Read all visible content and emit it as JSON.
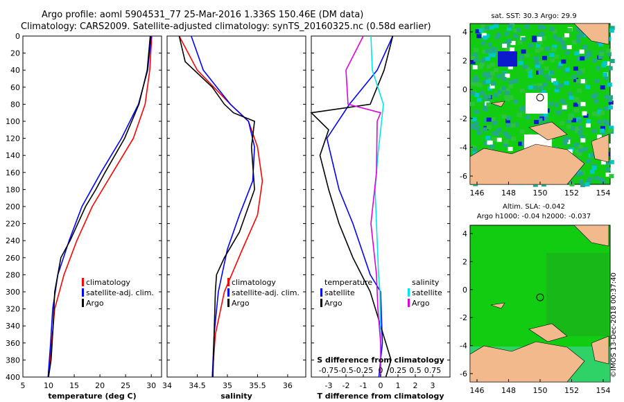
{
  "title_line1": "Argo profile: aoml 5904531_77 25-Mar-2016 1.336S 150.46E (DM data)",
  "title_line2": "Climatology: CARS2009. Satellite-adjusted climatology: synTS_20160325.nc (0.58d earlier)",
  "colors": {
    "climatology": "#ff0000",
    "satellite": "#0000ff",
    "argo": "#000000",
    "sat_salinity": "#00e5f0",
    "argo_salinity": "#e000e0",
    "ocean": "#11cc11",
    "land": "#f2b98c"
  },
  "chart_data": [
    {
      "type": "line",
      "name": "temperature",
      "xlabel": "temperature (deg C)",
      "xlim": [
        5,
        32
      ],
      "ylim": [
        400,
        0
      ],
      "xticks": [
        5,
        10,
        15,
        20,
        25,
        30
      ],
      "yticks": [
        0,
        20,
        40,
        60,
        80,
        100,
        120,
        140,
        160,
        180,
        200,
        220,
        240,
        260,
        280,
        300,
        320,
        340,
        360,
        380,
        400
      ],
      "series": [
        {
          "name": "climatology",
          "depth": [
            0,
            40,
            80,
            120,
            160,
            200,
            240,
            280,
            320,
            360,
            400
          ],
          "values": [
            30.1,
            29.7,
            28.8,
            26.5,
            22.5,
            18.5,
            15.5,
            13.0,
            11.2,
            10.6,
            10.0
          ]
        },
        {
          "name": "satellite-adj. clim.",
          "depth": [
            0,
            40,
            80,
            120,
            160,
            200,
            240,
            280,
            320,
            360,
            400
          ],
          "values": [
            30.0,
            29.3,
            27.5,
            24.2,
            20.2,
            16.5,
            14.0,
            11.8,
            10.8,
            10.4,
            9.9
          ]
        },
        {
          "name": "Argo",
          "depth": [
            0,
            40,
            80,
            120,
            160,
            180,
            200,
            240,
            260,
            300,
            340,
            380,
            400
          ],
          "values": [
            29.8,
            29.2,
            27.6,
            24.8,
            21.0,
            19.2,
            17.2,
            14.2,
            12.4,
            11.2,
            10.9,
            10.5,
            10.0
          ]
        }
      ],
      "legend": [
        "climatology",
        "satellite-adj. clim.",
        "Argo"
      ]
    },
    {
      "type": "line",
      "name": "salinity",
      "xlabel": "salinity",
      "xlim": [
        34,
        36.3
      ],
      "ylim": [
        400,
        0
      ],
      "xticks": [
        34,
        34.5,
        35,
        35.5,
        36
      ],
      "series": [
        {
          "name": "climatology",
          "depth": [
            0,
            40,
            80,
            100,
            130,
            170,
            210,
            250,
            300,
            350,
            400
          ],
          "values": [
            34.2,
            34.5,
            35.05,
            35.35,
            35.5,
            35.58,
            35.5,
            35.25,
            34.95,
            34.8,
            34.75
          ]
        },
        {
          "name": "satellite-adj. clim.",
          "depth": [
            0,
            40,
            80,
            100,
            130,
            170,
            210,
            250,
            300,
            350,
            400
          ],
          "values": [
            34.4,
            34.6,
            35.05,
            35.35,
            35.45,
            35.42,
            35.2,
            35.0,
            34.85,
            34.78,
            34.75
          ]
        },
        {
          "name": "Argo",
          "depth": [
            0,
            30,
            60,
            80,
            90,
            100,
            130,
            180,
            230,
            260,
            280,
            300,
            350,
            400
          ],
          "values": [
            34.2,
            34.3,
            34.75,
            34.95,
            35.1,
            35.45,
            35.4,
            35.45,
            35.2,
            34.95,
            34.82,
            34.8,
            34.78,
            34.76
          ]
        }
      ],
      "legend": [
        "climatology",
        "satellite-adj. clim.",
        "Argo"
      ]
    },
    {
      "type": "line",
      "name": "difference",
      "xlabel": "T difference from climatology",
      "xlabel_top": "S difference from climatology",
      "xlim": [
        -4,
        4
      ],
      "s_xlim": [
        -1,
        1
      ],
      "ylim": [
        400,
        0
      ],
      "xticks": [
        "-3",
        "-2",
        "-1",
        "0",
        "1",
        "2",
        "3"
      ],
      "s_xticks": [
        "-0.75",
        "-0.5",
        "-0.25",
        "0",
        "0.25",
        "0.5",
        "0.75"
      ],
      "series": [
        {
          "name": "temperature satellite",
          "depth": [
            0,
            40,
            80,
            120,
            180,
            220,
            280,
            300,
            360,
            400
          ],
          "values": [
            0.7,
            -0.2,
            -1.8,
            -3.1,
            -2.4,
            -1.6,
            -0.6,
            0.0,
            0.1,
            -0.1
          ]
        },
        {
          "name": "temperature Argo",
          "depth": [
            0,
            40,
            80,
            90,
            110,
            140,
            180,
            220,
            260,
            300,
            360,
            380,
            400
          ],
          "values": [
            0.7,
            0.2,
            -0.6,
            -4.0,
            -3.0,
            -3.5,
            -3.0,
            -2.4,
            -1.6,
            -0.6,
            0.3,
            0.6,
            0.3
          ]
        },
        {
          "name": "salinity satellite",
          "depth": [
            0,
            40,
            80,
            140,
            180,
            220,
            280,
            300,
            360,
            400
          ],
          "values": [
            -0.14,
            -0.12,
            0.04,
            -0.04,
            -0.08,
            -0.06,
            -0.03,
            -0.01,
            0.0,
            0.0
          ]
        },
        {
          "name": "salinity Argo",
          "depth": [
            0,
            40,
            80,
            90,
            100,
            160,
            220,
            280,
            320,
            360,
            400
          ],
          "values": [
            -0.25,
            -0.5,
            -0.47,
            0.0,
            -0.05,
            -0.06,
            -0.14,
            -0.06,
            -0.04,
            0.0,
            0.0
          ]
        }
      ],
      "legend_left_title": "temperature",
      "legend_right_title": "salinity",
      "legend_left": [
        "satellite",
        "Argo"
      ],
      "legend_right": [
        "satellite",
        "Argo"
      ]
    }
  ],
  "map1": {
    "title": "sat. SST: 30.3 Argo: 29.9",
    "xticks": [
      "146",
      "148",
      "150",
      "152",
      "154"
    ],
    "yticks": [
      "4",
      "2",
      "0",
      "-2",
      "-4",
      "-6"
    ]
  },
  "map2": {
    "title1": "Altim. SLA: -0.042",
    "title2": "Argo h1000: -0.04 h2000: -0.037",
    "xticks": [
      "146",
      "148",
      "150",
      "152",
      "154"
    ],
    "yticks": [
      "4",
      "2",
      "0",
      "-2",
      "-4",
      "-6"
    ]
  },
  "footer": "©IMOS 13-Dec-2018 00:37:40"
}
